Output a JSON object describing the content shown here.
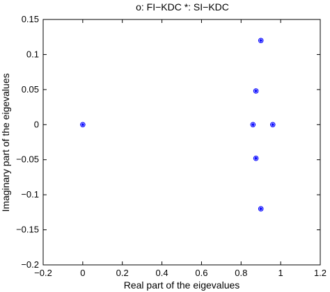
{
  "chart_data": {
    "type": "scatter",
    "title": "o: FI−KDC     *: SI−KDC",
    "xlabel": "Real part of the eigevalues",
    "ylabel": "Imaginary part of the eigevalues",
    "xlim": [
      -0.2,
      1.2
    ],
    "ylim": [
      -0.2,
      0.15
    ],
    "xticks": [
      -0.2,
      0,
      0.2,
      0.4,
      0.6,
      0.8,
      1.0,
      1.2
    ],
    "xtick_labels": [
      "−0.2",
      "0",
      "0.2",
      "0.4",
      "0.6",
      "0.8",
      "1",
      "1.2"
    ],
    "yticks": [
      -0.2,
      -0.15,
      -0.1,
      -0.05,
      0,
      0.05,
      0.1,
      0.15
    ],
    "ytick_labels": [
      "−0.2",
      "−0.15",
      "−0.1",
      "−0.05",
      "0",
      "0.05",
      "0.1",
      "0.15"
    ],
    "grid": false,
    "marker_color": "#0000ff",
    "series": [
      {
        "name": "FI−KDC",
        "marker": "o",
        "points": [
          {
            "x": 0.0,
            "y": 0.0
          },
          {
            "x": 0.86,
            "y": 0.0
          },
          {
            "x": 0.96,
            "y": 0.0
          },
          {
            "x": 0.875,
            "y": 0.048
          },
          {
            "x": 0.875,
            "y": -0.048
          },
          {
            "x": 0.9,
            "y": 0.12
          },
          {
            "x": 0.9,
            "y": -0.12
          }
        ]
      },
      {
        "name": "SI−KDC",
        "marker": "*",
        "points": [
          {
            "x": 0.0,
            "y": 0.0
          },
          {
            "x": 0.86,
            "y": 0.0
          },
          {
            "x": 0.96,
            "y": 0.0
          },
          {
            "x": 0.875,
            "y": 0.048
          },
          {
            "x": 0.875,
            "y": -0.048
          },
          {
            "x": 0.9,
            "y": 0.12
          },
          {
            "x": 0.9,
            "y": -0.12
          }
        ]
      }
    ]
  }
}
